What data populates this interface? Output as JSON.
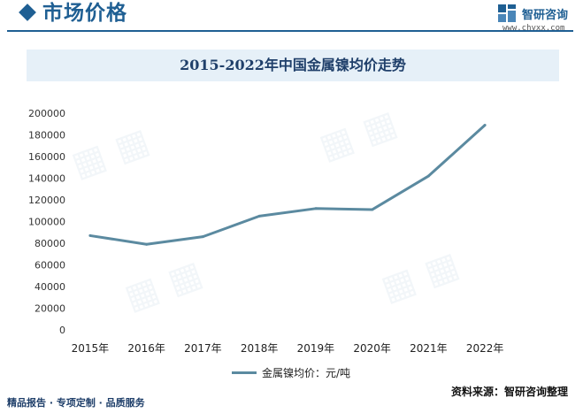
{
  "header": {
    "section_title": "市场价格",
    "brand_name": "智研咨询",
    "brand_url": "www.chyxx.com"
  },
  "chart_data": {
    "type": "line",
    "title": "2015-2022年中国金属镍均价走势",
    "categories": [
      "2015年",
      "2016年",
      "2017年",
      "2018年",
      "2019年",
      "2020年",
      "2021年",
      "2022年"
    ],
    "series": [
      {
        "name": "金属镍均价：元/吨",
        "values": [
          87000,
          79000,
          86000,
          105000,
          112000,
          111000,
          142000,
          189000
        ],
        "color": "#5b8aa0"
      }
    ],
    "ylim": [
      0,
      200000
    ],
    "yticks": [
      0,
      20000,
      40000,
      60000,
      80000,
      100000,
      120000,
      140000,
      160000,
      180000,
      200000
    ],
    "grid": false,
    "legend_position": "bottom-center"
  },
  "footer": {
    "left_text": "精品报告 · 专项定制 · 品质服务",
    "source_text": "资料来源：智研咨询整理"
  },
  "colors": {
    "brand": "#1f5f93",
    "title_band": "#e6f0f8",
    "line": "#5b8aa0"
  },
  "icons": {
    "section_marker": "diamond-icon",
    "brand_logo": "zhiyan-logo-icon"
  }
}
